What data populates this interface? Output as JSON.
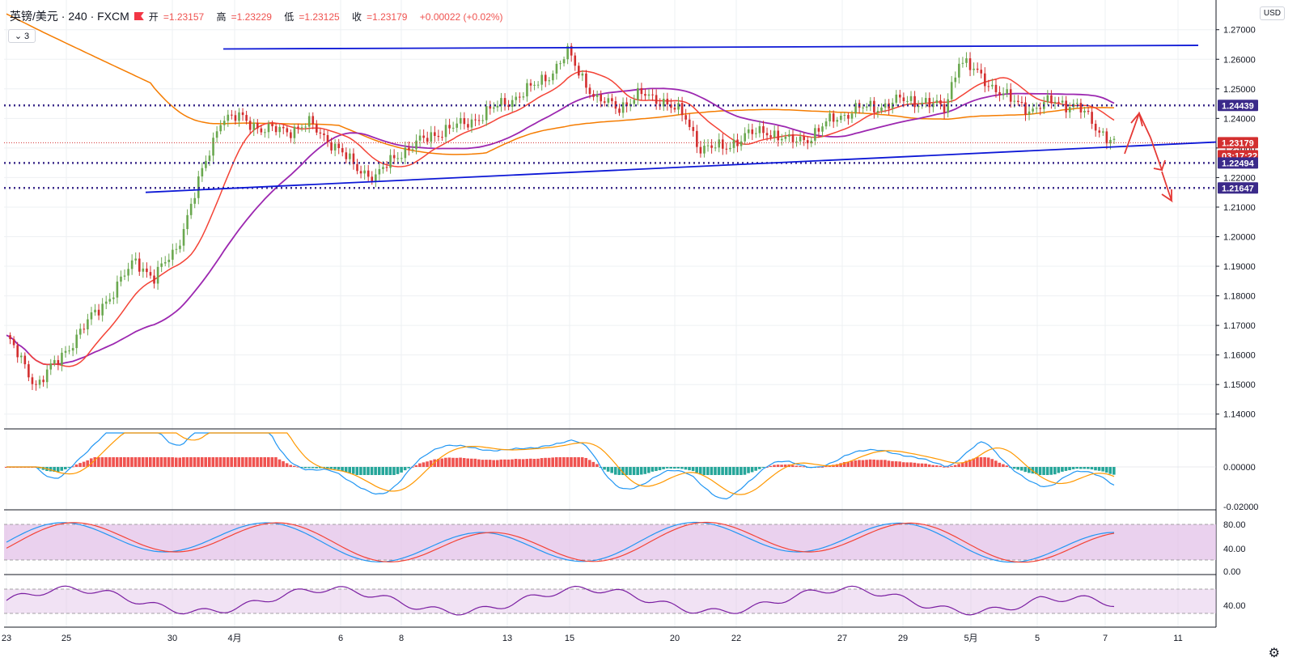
{
  "header": {
    "symbol": "英镑/美元 · 240 · FXCM",
    "open_label": "开",
    "open": "=1.23157",
    "high_label": "高",
    "high": "=1.23229",
    "low_label": "低",
    "low": "=1.23125",
    "close_label": "收",
    "close": "=1.23179",
    "change": "+0.00022 (+0.02%)"
  },
  "indicator_collapse_count": "3",
  "currency_badge": "USD",
  "colors": {
    "up": "#6aa84f",
    "down": "#d32f2f",
    "ma_fast": "#f44336",
    "ma_mid": "#9c27b0",
    "ma_slow": "#f57c00",
    "trendline": "#0d18d6",
    "dotted_level": "#3b2a8a",
    "arrow": "#e53935",
    "macd_hist_pos": "#ef5350",
    "macd_hist_neg": "#26a69a",
    "stoch_band": "#e1bee7"
  },
  "chart_data": {
    "type": "candlestick",
    "instrument": "英镑/美元",
    "timeframe": "240",
    "price_axis": {
      "ylim": [
        1.135,
        1.2795
      ],
      "ticks": [
        "1.27000",
        "1.26000",
        "1.25000",
        "1.24000",
        "1.23000",
        "1.22000",
        "1.21000",
        "1.20000",
        "1.19000",
        "1.18000",
        "1.17000",
        "1.16000",
        "1.15000",
        "1.14000"
      ]
    },
    "x_labels": [
      "23",
      "25",
      "30",
      "4月",
      "6",
      "8",
      "13",
      "15",
      "20",
      "22",
      "27",
      "29",
      "5月",
      "5",
      "7",
      "11"
    ],
    "price_labels": [
      {
        "value": "1.24439",
        "color": "#3b2a8a"
      },
      {
        "value": "1.23179",
        "color": "#d32f2f"
      },
      {
        "value": "03:17:22",
        "color": "#d32f2f"
      },
      {
        "value": "1.22494",
        "color": "#3b2a8a"
      },
      {
        "value": "1.21647",
        "color": "#3b2a8a"
      }
    ],
    "horizontal_levels": [
      1.24439,
      1.22494,
      1.21647
    ],
    "last_price": 1.23179,
    "resistance_line": {
      "from": 1.2635,
      "to": 1.2647
    },
    "support_line": {
      "from": 1.215,
      "to": 1.232
    },
    "macd": {
      "ticks": [
        "0.00000",
        "-0.02000"
      ]
    },
    "stochastic": {
      "ticks": [
        "80.00",
        "40.00",
        "0.00"
      ]
    },
    "rsi": {
      "ticks": [
        "40.00"
      ]
    }
  }
}
